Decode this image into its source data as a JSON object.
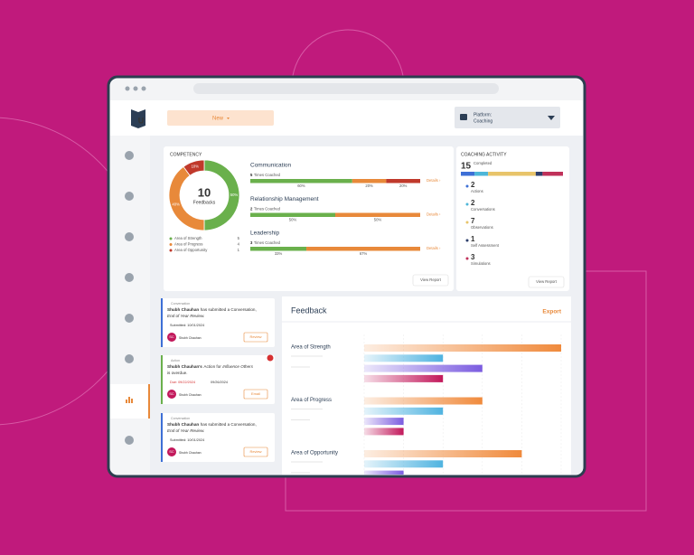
{
  "header": {
    "new_button": "New",
    "platform_label": "Platform:",
    "platform_value": "Coaching"
  },
  "competency": {
    "title": "COMPETENCY",
    "total": 10,
    "total_label": "Feedbacks",
    "segments": [
      {
        "name": "Area of Strength",
        "color": "#6ab04c",
        "percent": 50,
        "percent_label": "50%",
        "count": 5
      },
      {
        "name": "Area of Progress",
        "color": "#e8893a",
        "percent": 40,
        "percent_label": "40%",
        "count": 4
      },
      {
        "name": "Area of Opportunity",
        "color": "#c0392b",
        "percent": 10,
        "percent_label": "10%",
        "count": 1
      }
    ],
    "skills": [
      {
        "name": "Communication",
        "times": 5,
        "times_label": "Times Coached",
        "split": [
          60,
          20,
          20
        ],
        "split_labels": [
          "60%",
          "20%",
          "20%"
        ]
      },
      {
        "name": "Relationship Management",
        "times": 2,
        "times_label": "Times Coached",
        "split": [
          50,
          50
        ],
        "split_labels": [
          "50%",
          "50%"
        ]
      },
      {
        "name": "Leadership",
        "times": 3,
        "times_label": "Times Coached",
        "split": [
          33,
          67
        ],
        "split_labels": [
          "33%",
          "67%"
        ]
      }
    ],
    "details": "Details ›",
    "view_report": "View Report"
  },
  "coaching": {
    "title": "COACHING ACTIVITY",
    "total": 15,
    "total_label": "Completed",
    "activities": [
      {
        "count": 2,
        "label": "Actions",
        "color": "#3d6fd6"
      },
      {
        "count": 2,
        "label": "Conversations",
        "color": "#4db6d8"
      },
      {
        "count": 7,
        "label": "Observations",
        "color": "#e8c46a"
      },
      {
        "count": 1,
        "label": "Self Assessment",
        "color": "#2c3e6b"
      },
      {
        "count": 3,
        "label": "Simulations",
        "color": "#c0315a"
      }
    ],
    "view_report": "View Report"
  },
  "feed": [
    {
      "tag": "Conversation",
      "name": "Shubh Chauhan",
      "text": "has submitted a Conversation,",
      "subject": "End of Year Review.",
      "date": "Submitted: 10/01/2024",
      "initials": "SC",
      "author": "Shubh Chauhan",
      "button": "Review"
    },
    {
      "tag": "Action",
      "name": "Shubh Chauhan's",
      "text": "Action for",
      "subject": "Influence Others",
      "text_end": "is overdue.",
      "due": "Due: 09/22/2024",
      "date": "09/26/2024",
      "initials": "SC",
      "author": "Shubh Chauhan",
      "button": "Email"
    },
    {
      "tag": "Conversation",
      "name": "Shubh Chauhan",
      "text": "has submitted a Conversation,",
      "subject": "End of Year Review.",
      "date": "Submitted: 10/01/2024",
      "initials": "SC",
      "author": "Shubh Chauhan",
      "button": "Review"
    }
  ],
  "feedback": {
    "title": "Feedback",
    "export": "Export",
    "groups": [
      "Area of Strength",
      "Area of Progress",
      "Area of Opportunity"
    ],
    "xlim": [
      0,
      100
    ],
    "xticks": [
      0,
      20,
      40,
      60,
      80,
      100
    ],
    "series": [
      {
        "color": "#f08a3c",
        "values": [
          100,
          60,
          80
        ]
      },
      {
        "color": "#4fb3e0",
        "values": [
          40,
          40,
          40
        ]
      },
      {
        "color": "#7b5ce0",
        "values": [
          60,
          20,
          20
        ]
      },
      {
        "color": "#c2185b",
        "values": [
          40,
          20,
          null
        ]
      }
    ]
  }
}
